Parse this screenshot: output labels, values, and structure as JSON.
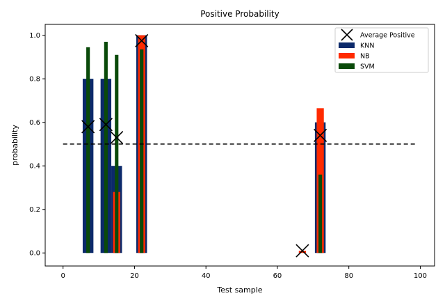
{
  "chart_data": {
    "type": "bar",
    "title": "Positive Probability",
    "xlabel": "Test sample",
    "ylabel": "probability",
    "xlim": [
      -5,
      104
    ],
    "ylim": [
      -0.06,
      1.05
    ],
    "xticks": [
      0,
      20,
      40,
      60,
      80,
      100
    ],
    "yticks": [
      0.0,
      0.2,
      0.4,
      0.6,
      0.8,
      1.0
    ],
    "xtick_labels": [
      "0",
      "20",
      "40",
      "60",
      "80",
      "100"
    ],
    "ytick_labels": [
      "0.0",
      "0.2",
      "0.4",
      "0.6",
      "0.8",
      "1.0"
    ],
    "grid": false,
    "legend_position": "top-right",
    "threshold": {
      "y": 0.5,
      "x_start": 0,
      "x_end": 99,
      "style": "dashed"
    },
    "series": [
      {
        "name": "KNN",
        "type": "bar",
        "color": "#0c2a6b",
        "points": [
          {
            "x": 7,
            "value": 0.8
          },
          {
            "x": 12,
            "value": 0.8
          },
          {
            "x": 15,
            "value": 0.4
          },
          {
            "x": 22,
            "value": 1.0
          },
          {
            "x": 72,
            "value": 0.6
          }
        ]
      },
      {
        "name": "NB",
        "type": "bar",
        "color": "#ff2a00",
        "points": [
          {
            "x": 15,
            "value": 0.28
          },
          {
            "x": 22,
            "value": 1.0
          },
          {
            "x": 67,
            "value": 0.01
          },
          {
            "x": 72,
            "value": 0.665
          }
        ]
      },
      {
        "name": "SVM",
        "type": "bar",
        "color": "#0a4a0a",
        "points": [
          {
            "x": 7,
            "value": 0.945
          },
          {
            "x": 12,
            "value": 0.97
          },
          {
            "x": 15,
            "value": 0.91
          },
          {
            "x": 22,
            "value": 0.935
          },
          {
            "x": 72,
            "value": 0.36
          }
        ]
      },
      {
        "name": "Average Positive",
        "type": "scatter",
        "marker": "x",
        "color": "#000000",
        "points": [
          {
            "x": 7,
            "y": 0.58
          },
          {
            "x": 12,
            "y": 0.59
          },
          {
            "x": 15,
            "y": 0.53
          },
          {
            "x": 22,
            "y": 0.975
          },
          {
            "x": 67,
            "y": 0.01
          },
          {
            "x": 72,
            "y": 0.54
          }
        ]
      }
    ],
    "legend": [
      {
        "label": "Average Positive",
        "kind": "marker",
        "color": "#000000"
      },
      {
        "label": "KNN",
        "kind": "patch",
        "color": "#0c2a6b"
      },
      {
        "label": "NB",
        "kind": "patch",
        "color": "#ff2a00"
      },
      {
        "label": "SVM",
        "kind": "patch",
        "color": "#0a4a0a"
      }
    ]
  }
}
